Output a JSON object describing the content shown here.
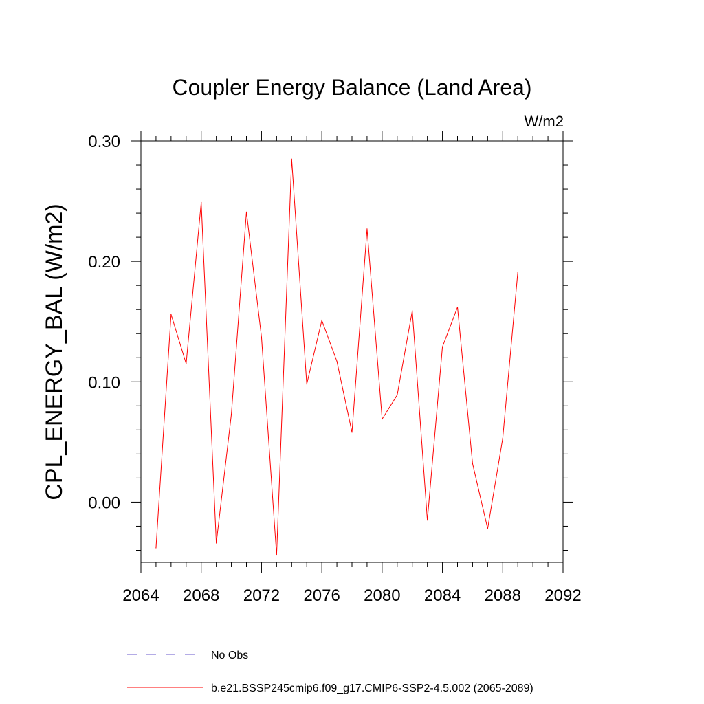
{
  "chart_data": {
    "type": "line",
    "title": "Coupler Energy Balance (Land Area)",
    "units": "W/m2",
    "ylabel": "CPL_ENERGY_BAL  (W/m2)",
    "xlabel": "",
    "xlim": [
      2064,
      2092
    ],
    "ylim": [
      -0.05,
      0.3
    ],
    "xticks": [
      2064,
      2068,
      2072,
      2076,
      2080,
      2084,
      2088,
      2092
    ],
    "xtick_labels": [
      "2064",
      "2068",
      "2072",
      "2076",
      "2080",
      "2084",
      "2088",
      "2092"
    ],
    "yticks": [
      0.0,
      0.1,
      0.2,
      0.3
    ],
    "ytick_labels": [
      "0.00",
      "0.10",
      "0.20",
      "0.30"
    ],
    "series": [
      {
        "name": "b.e21.BSSP245cmip6.f09_g17.CMIP6-SSP2-4.5.002 (2065-2089)",
        "color": "#ff0000",
        "x": [
          2065,
          2066,
          2067,
          2068,
          2069,
          2070,
          2071,
          2072,
          2073,
          2074,
          2075,
          2076,
          2077,
          2078,
          2079,
          2080,
          2081,
          2082,
          2083,
          2084,
          2085,
          2086,
          2087,
          2088,
          2089
        ],
        "y": [
          -0.038,
          0.156,
          0.115,
          0.249,
          -0.034,
          0.073,
          0.241,
          0.137,
          -0.044,
          0.285,
          0.098,
          0.151,
          0.117,
          0.058,
          0.227,
          0.069,
          0.089,
          0.159,
          -0.015,
          0.129,
          0.162,
          0.032,
          -0.022,
          0.053,
          0.191
        ]
      }
    ],
    "legend": [
      {
        "label": "No Obs",
        "color": "#6a5acd",
        "style": "dashed"
      },
      {
        "label": "b.e21.BSSP245cmip6.f09_g17.CMIP6-SSP2-4.5.002 (2065-2089)",
        "color": "#ff0000",
        "style": "solid"
      }
    ],
    "legend_placement": "bottom",
    "grid": false
  }
}
